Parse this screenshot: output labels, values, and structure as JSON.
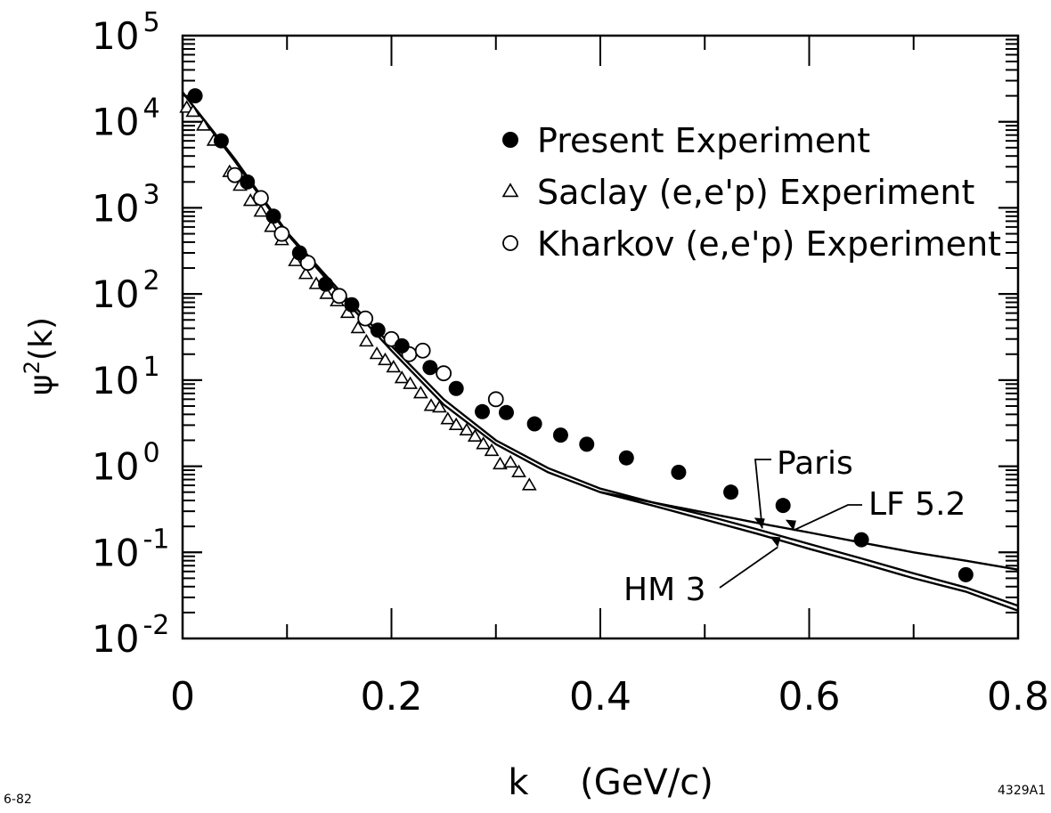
{
  "chart_data": {
    "type": "scatter",
    "y_scale": "log",
    "xlabel": "k",
    "xlabel_unit": "(GeV/c)",
    "ylabel_base": "ψ",
    "ylabel_exp": "2",
    "ylabel_tail": "(k)",
    "xlim": [
      0,
      0.8
    ],
    "ylim": [
      0.01,
      100000
    ],
    "x_ticks": [
      {
        "value": 0,
        "label": "0"
      },
      {
        "value": 0.2,
        "label": "0.2"
      },
      {
        "value": 0.4,
        "label": "0.4"
      },
      {
        "value": 0.6,
        "label": "0.6"
      },
      {
        "value": 0.8,
        "label": "0.8"
      }
    ],
    "y_ticks": [
      {
        "exp": -2,
        "base": "10",
        "sup": "-2"
      },
      {
        "exp": -1,
        "base": "10",
        "sup": "-1"
      },
      {
        "exp": 0,
        "base": "10",
        "sup": "0"
      },
      {
        "exp": 1,
        "base": "10",
        "sup": "1"
      },
      {
        "exp": 2,
        "base": "10",
        "sup": "2"
      },
      {
        "exp": 3,
        "base": "10",
        "sup": "3"
      },
      {
        "exp": 4,
        "base": "10",
        "sup": "4"
      },
      {
        "exp": 5,
        "base": "10",
        "sup": "5"
      }
    ],
    "legend_position": "top-right",
    "series": [
      {
        "name": "Present Experiment",
        "marker": "filled-circle",
        "points": [
          {
            "x": 0.012,
            "y": 20000
          },
          {
            "x": 0.037,
            "y": 6000
          },
          {
            "x": 0.062,
            "y": 2000
          },
          {
            "x": 0.087,
            "y": 800
          },
          {
            "x": 0.112,
            "y": 300
          },
          {
            "x": 0.137,
            "y": 130
          },
          {
            "x": 0.162,
            "y": 75
          },
          {
            "x": 0.187,
            "y": 38
          },
          {
            "x": 0.21,
            "y": 25
          },
          {
            "x": 0.237,
            "y": 14
          },
          {
            "x": 0.262,
            "y": 8
          },
          {
            "x": 0.287,
            "y": 4.3
          },
          {
            "x": 0.31,
            "y": 4.2
          },
          {
            "x": 0.337,
            "y": 3.1
          },
          {
            "x": 0.362,
            "y": 2.3
          },
          {
            "x": 0.387,
            "y": 1.8
          },
          {
            "x": 0.425,
            "y": 1.25
          },
          {
            "x": 0.475,
            "y": 0.85
          },
          {
            "x": 0.525,
            "y": 0.5
          },
          {
            "x": 0.575,
            "y": 0.35
          },
          {
            "x": 0.65,
            "y": 0.14
          },
          {
            "x": 0.75,
            "y": 0.055
          }
        ]
      },
      {
        "name": "Saclay (e,e'p) Experiment",
        "marker": "open-triangle",
        "points": [
          {
            "x": 0.004,
            "y": 14500
          },
          {
            "x": 0.01,
            "y": 13000
          },
          {
            "x": 0.02,
            "y": 9000
          },
          {
            "x": 0.03,
            "y": 6000
          },
          {
            "x": 0.045,
            "y": 2600
          },
          {
            "x": 0.055,
            "y": 1800
          },
          {
            "x": 0.065,
            "y": 1200
          },
          {
            "x": 0.075,
            "y": 900
          },
          {
            "x": 0.085,
            "y": 600
          },
          {
            "x": 0.095,
            "y": 420
          },
          {
            "x": 0.108,
            "y": 240
          },
          {
            "x": 0.118,
            "y": 170
          },
          {
            "x": 0.128,
            "y": 130
          },
          {
            "x": 0.138,
            "y": 100
          },
          {
            "x": 0.148,
            "y": 82
          },
          {
            "x": 0.158,
            "y": 60
          },
          {
            "x": 0.168,
            "y": 40
          },
          {
            "x": 0.176,
            "y": 28
          },
          {
            "x": 0.186,
            "y": 20
          },
          {
            "x": 0.194,
            "y": 17
          },
          {
            "x": 0.202,
            "y": 14
          },
          {
            "x": 0.21,
            "y": 10.5
          },
          {
            "x": 0.218,
            "y": 9
          },
          {
            "x": 0.228,
            "y": 7
          },
          {
            "x": 0.238,
            "y": 5
          },
          {
            "x": 0.246,
            "y": 4.8
          },
          {
            "x": 0.254,
            "y": 3.5
          },
          {
            "x": 0.262,
            "y": 3
          },
          {
            "x": 0.272,
            "y": 2.6
          },
          {
            "x": 0.28,
            "y": 2.2
          },
          {
            "x": 0.288,
            "y": 1.8
          },
          {
            "x": 0.296,
            "y": 1.5
          },
          {
            "x": 0.304,
            "y": 1.05
          },
          {
            "x": 0.314,
            "y": 1.1
          },
          {
            "x": 0.322,
            "y": 0.85
          },
          {
            "x": 0.332,
            "y": 0.6
          }
        ]
      },
      {
        "name": "Kharkov (e,e'p) Experiment",
        "marker": "open-circle",
        "points": [
          {
            "x": 0.05,
            "y": 2400
          },
          {
            "x": 0.075,
            "y": 1300
          },
          {
            "x": 0.095,
            "y": 500
          },
          {
            "x": 0.12,
            "y": 230
          },
          {
            "x": 0.15,
            "y": 95
          },
          {
            "x": 0.175,
            "y": 52
          },
          {
            "x": 0.2,
            "y": 30
          },
          {
            "x": 0.217,
            "y": 20
          },
          {
            "x": 0.23,
            "y": 22
          },
          {
            "x": 0.25,
            "y": 12
          },
          {
            "x": 0.3,
            "y": 6
          }
        ]
      }
    ],
    "curves": [
      {
        "name": "HM 3",
        "points": [
          [
            0,
            22000
          ],
          [
            0.05,
            3500
          ],
          [
            0.1,
            500
          ],
          [
            0.15,
            100
          ],
          [
            0.2,
            22
          ],
          [
            0.25,
            5.2
          ],
          [
            0.3,
            1.8
          ],
          [
            0.35,
            0.85
          ],
          [
            0.4,
            0.5
          ],
          [
            0.45,
            0.35
          ],
          [
            0.5,
            0.24
          ],
          [
            0.55,
            0.165
          ],
          [
            0.6,
            0.11
          ],
          [
            0.65,
            0.075
          ],
          [
            0.7,
            0.05
          ],
          [
            0.75,
            0.035
          ],
          [
            0.8,
            0.021
          ]
        ]
      },
      {
        "name": "Paris",
        "points": [
          [
            0,
            22000
          ],
          [
            0.05,
            3700
          ],
          [
            0.1,
            520
          ],
          [
            0.15,
            110
          ],
          [
            0.2,
            25
          ],
          [
            0.25,
            6
          ],
          [
            0.3,
            2.0
          ],
          [
            0.35,
            0.95
          ],
          [
            0.4,
            0.55
          ],
          [
            0.45,
            0.38
          ],
          [
            0.5,
            0.27
          ],
          [
            0.55,
            0.185
          ],
          [
            0.6,
            0.125
          ],
          [
            0.65,
            0.085
          ],
          [
            0.7,
            0.057
          ],
          [
            0.75,
            0.039
          ],
          [
            0.8,
            0.024
          ]
        ]
      },
      {
        "name": "LF 5.2",
        "points": [
          [
            0.4,
            0.5
          ],
          [
            0.45,
            0.38
          ],
          [
            0.5,
            0.29
          ],
          [
            0.55,
            0.22
          ],
          [
            0.6,
            0.17
          ],
          [
            0.65,
            0.13
          ],
          [
            0.7,
            0.1
          ],
          [
            0.75,
            0.08
          ],
          [
            0.8,
            0.063
          ]
        ]
      }
    ],
    "curve_labels": [
      {
        "name": "Paris",
        "text": "Paris",
        "target_x": 0.555,
        "target_y": 0.19
      },
      {
        "name": "LF 5.2",
        "text": "LF 5.2",
        "target_x": 0.585,
        "target_y": 0.18
      },
      {
        "name": "HM 3",
        "text": "HM 3",
        "target_x": 0.57,
        "target_y": 0.115
      }
    ]
  },
  "figure_codes": {
    "date": "6-82",
    "number": "4329A1"
  }
}
